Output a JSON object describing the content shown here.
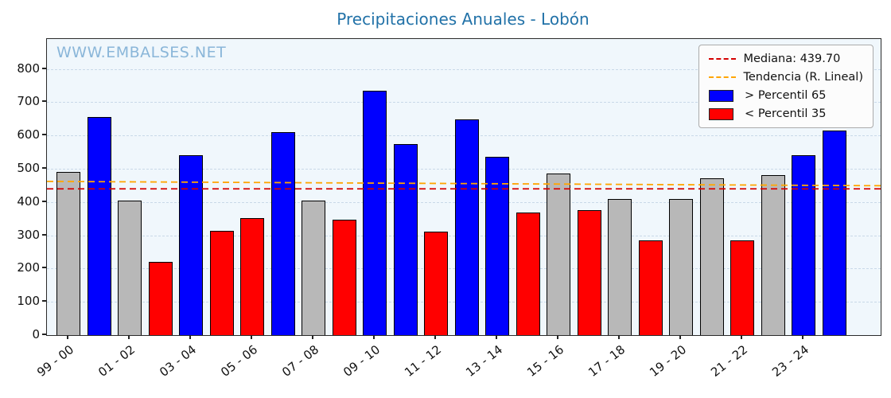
{
  "chart_data": {
    "type": "bar",
    "title": "Precipitaciones Anuales - Lobón",
    "watermark": "WWW.EMBALSES.NET",
    "xlabel": "",
    "ylabel": "",
    "ylim": [
      0,
      890
    ],
    "yticks": [
      0,
      100,
      200,
      300,
      400,
      500,
      600,
      700,
      800
    ],
    "grid": true,
    "legend_position": "upper right",
    "x_tick_labels": [
      "99 - 00",
      "01 - 02",
      "03 - 04",
      "05 - 06",
      "07 - 08",
      "09 - 10",
      "11 - 12",
      "13 - 14",
      "15 - 16",
      "17 - 18",
      "19 - 20",
      "21 - 22",
      "23 - 24"
    ],
    "x_tick_bar_indices": [
      0,
      2,
      4,
      6,
      8,
      10,
      12,
      14,
      16,
      18,
      20,
      22,
      24
    ],
    "bars": [
      {
        "value": 490,
        "category": "normal"
      },
      {
        "value": 655,
        "category": "above65"
      },
      {
        "value": 405,
        "category": "normal"
      },
      {
        "value": 220,
        "category": "below35"
      },
      {
        "value": 540,
        "category": "above65"
      },
      {
        "value": 313,
        "category": "below35"
      },
      {
        "value": 352,
        "category": "below35"
      },
      {
        "value": 610,
        "category": "above65"
      },
      {
        "value": 405,
        "category": "normal"
      },
      {
        "value": 348,
        "category": "below35"
      },
      {
        "value": 735,
        "category": "above65"
      },
      {
        "value": 575,
        "category": "above65"
      },
      {
        "value": 310,
        "category": "below35"
      },
      {
        "value": 648,
        "category": "above65"
      },
      {
        "value": 535,
        "category": "above65"
      },
      {
        "value": 368,
        "category": "below35"
      },
      {
        "value": 485,
        "category": "normal"
      },
      {
        "value": 375,
        "category": "below35"
      },
      {
        "value": 408,
        "category": "normal"
      },
      {
        "value": 285,
        "category": "below35"
      },
      {
        "value": 408,
        "category": "normal"
      },
      {
        "value": 472,
        "category": "normal"
      },
      {
        "value": 285,
        "category": "below35"
      },
      {
        "value": 480,
        "category": "normal"
      },
      {
        "value": 540,
        "category": "above65"
      },
      {
        "value": 615,
        "category": "above65"
      }
    ],
    "median": 439.7,
    "trend_line": {
      "start_value": 462,
      "end_value": 449
    },
    "colors": {
      "above65": "#0000ff",
      "below35": "#ff0000",
      "normal": "#b8b8b8",
      "bar_edge": "#000000",
      "median_line": "#d40000",
      "trend_line": "#ffa500",
      "title": "#2272a8",
      "watermark": "#8ab6d9",
      "plot_background": "#f0f7fc"
    },
    "legend": [
      {
        "label": "Mediana: 439.70",
        "swatch": "dashed",
        "color": "#d40000"
      },
      {
        "label": "Tendencia (R. Lineal)",
        "swatch": "dashed",
        "color": "#ffa500"
      },
      {
        "label": " > Percentil 65",
        "swatch": "fill",
        "color": "#0000ff"
      },
      {
        "label": " < Percentil 35",
        "swatch": "fill",
        "color": "#ff0000"
      }
    ]
  }
}
